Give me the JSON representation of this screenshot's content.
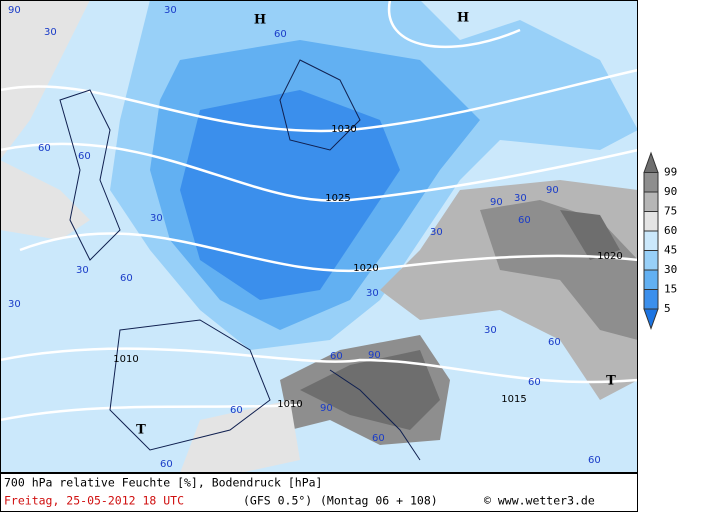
{
  "map": {
    "isobars": [
      "1030",
      "1025",
      "1020",
      "1015",
      "1010",
      "1010",
      "1020"
    ],
    "centers": [
      "H",
      "H",
      "T",
      "T"
    ],
    "humidity_labels": [
      "90",
      "30",
      "30",
      "60",
      "60",
      "30",
      "60",
      "30",
      "60",
      "30",
      "30",
      "60",
      "30",
      "90",
      "90",
      "60",
      "30",
      "30",
      "60",
      "60",
      "90",
      "60",
      "60",
      "90",
      "60",
      "60"
    ]
  },
  "legend": {
    "labels": [
      "99",
      "90",
      "75",
      "60",
      "45",
      "30",
      "15",
      "5"
    ],
    "colors": [
      "#6e6e6e",
      "#8e8e8e",
      "#b6b6b6",
      "#e4e4e4",
      "#cbe8fb",
      "#98d0f8",
      "#62b0f2",
      "#3b8fec",
      "#1c74e2"
    ]
  },
  "footer": {
    "line1": "700 hPa relative Feuchte [%], Bodendruck [hPa]",
    "date": "Freitag, 25-05-2012  18 UTC",
    "model": "(GFS 0.5°)",
    "run": "(Montag 06 + 108)",
    "credit": "© www.wetter3.de"
  }
}
